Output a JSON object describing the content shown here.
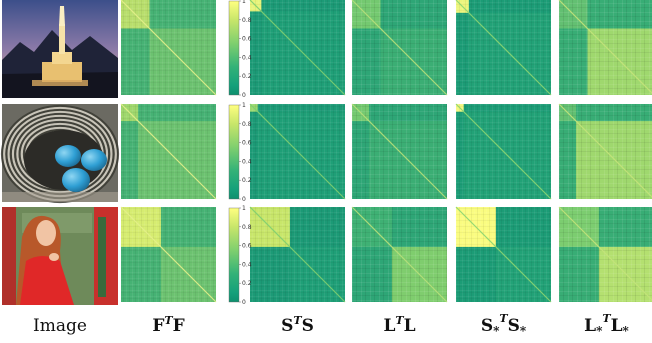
{
  "figure": {
    "columns": [
      {
        "id": "image",
        "label": "Image"
      },
      {
        "id": "ftf",
        "base": "F",
        "sup": "T",
        "base2": "F"
      },
      {
        "id": "sts",
        "base": "S",
        "sup": "T",
        "base2": "S"
      },
      {
        "id": "ltl",
        "base": "L",
        "sup": "T",
        "base2": "L"
      },
      {
        "id": "sts_star",
        "base": "S",
        "sub": "*",
        "sup": "T",
        "base2": "S",
        "sub2": "*"
      },
      {
        "id": "ltl_star",
        "base": "L",
        "sub": "*",
        "sup": "T",
        "base2": "L",
        "sub2": "*"
      }
    ],
    "rows": [
      {
        "photo": "temple-at-dusk",
        "blocks": [
          [
            0,
            0.3
          ],
          [
            0.3,
            1.0
          ]
        ]
      },
      {
        "photo": "bird-nest-blue-eggs",
        "blocks": [
          [
            0,
            0.18
          ],
          [
            0.18,
            1.0
          ]
        ]
      },
      {
        "photo": "woman-in-red-dress",
        "blocks": [
          [
            0,
            0.42
          ],
          [
            0.42,
            1.0
          ]
        ]
      }
    ],
    "colorbar": {
      "ticks": [
        "1",
        "0.8",
        "0.6",
        "0.4",
        "0.2",
        "0"
      ],
      "colors": [
        "#ffff80",
        "#c8e66a",
        "#7fcf6e",
        "#33b278",
        "#15a07a",
        "#0e8f6e"
      ]
    }
  }
}
